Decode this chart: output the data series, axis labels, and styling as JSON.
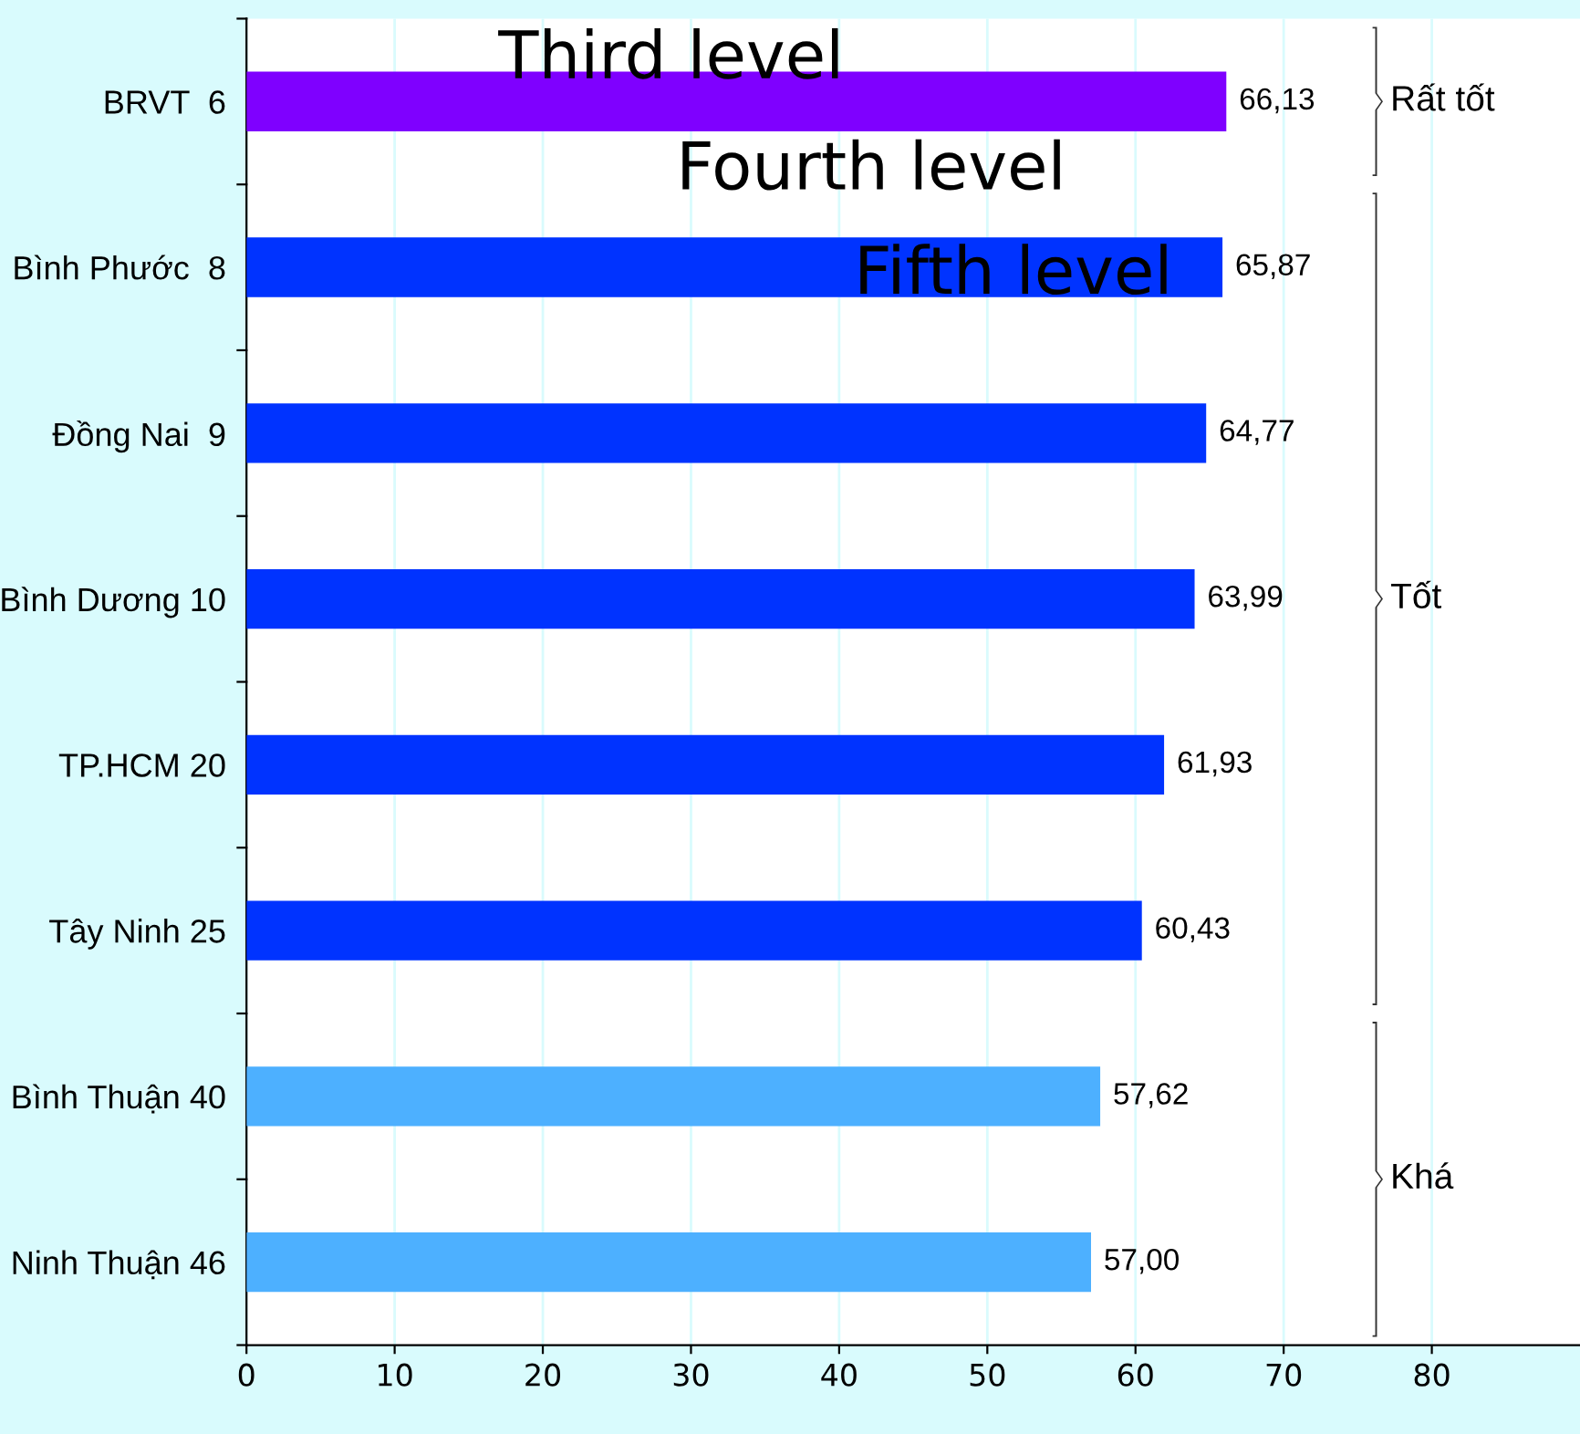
{
  "chart_data": {
    "type": "bar",
    "orientation": "horizontal",
    "categories": [
      "BRVT  6",
      "Bình Phước  8",
      "Đồng Nai  9",
      "Bình Dương 10",
      "TP.HCM 20",
      "Tây Ninh 25",
      "Bình Thuận 40",
      "Ninh Thuận 46"
    ],
    "values": [
      66.13,
      65.87,
      64.77,
      63.99,
      61.93,
      60.43,
      57.62,
      57.0
    ],
    "colors": [
      "#7f00ff",
      "#0033ff",
      "#0033ff",
      "#0033ff",
      "#0033ff",
      "#0033ff",
      "#4db0ff",
      "#4db0ff"
    ],
    "value_labels": [
      "66,13",
      "65,87",
      "64,77",
      "63,99",
      "61,93",
      "60,43",
      "57,62",
      "57,00"
    ],
    "xlim": [
      0,
      90
    ],
    "xticks": [
      0,
      10,
      20,
      30,
      40,
      50,
      60,
      70,
      80
    ],
    "grid": "x",
    "annotations": [
      "Rất tốt",
      "Tốt",
      "Khá",
      "Third level",
      "Fourth level",
      "Fifth level"
    ]
  }
}
